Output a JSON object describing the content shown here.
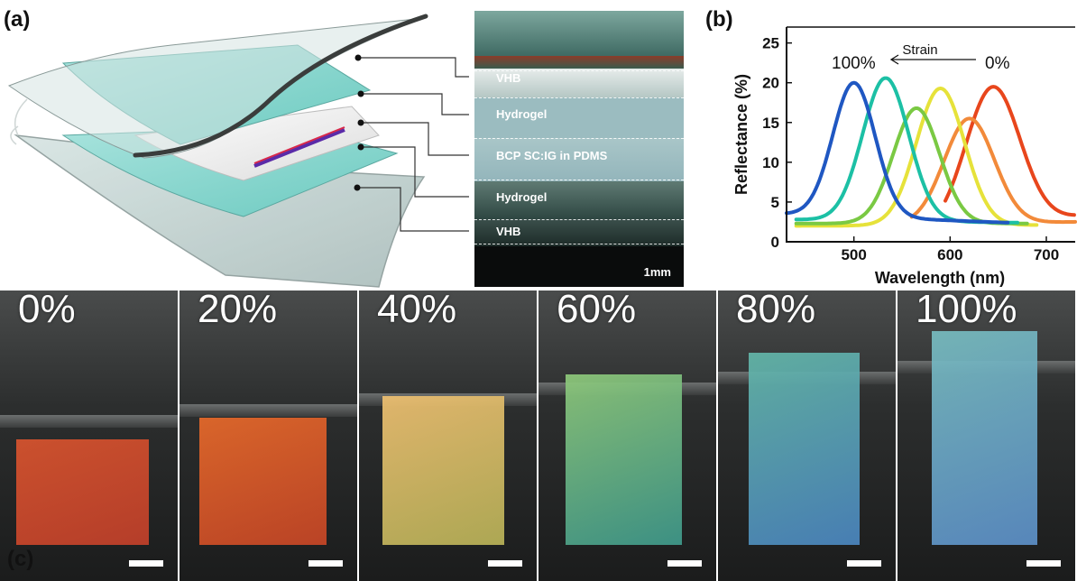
{
  "panel_labels": {
    "a": "(a)",
    "b": "(b)",
    "c": "(c)"
  },
  "panel_a": {
    "layers": [
      "VHB",
      "Hydrogel",
      "BCP SC:IG in PDMS",
      "Hydrogel",
      "VHB"
    ],
    "scale_bar": "1mm"
  },
  "chart_data": {
    "type": "line",
    "xlabel": "Wavelength (nm)",
    "ylabel": "Reflectance (%)",
    "xlim": [
      430,
      730
    ],
    "ylim": [
      0,
      27
    ],
    "xticks": [
      500,
      600,
      700
    ],
    "yticks": [
      0,
      5,
      10,
      15,
      20,
      25
    ],
    "annotation": {
      "left": "100%",
      "arrow": "Strain",
      "right": "0%"
    },
    "series": [
      {
        "color": "#e8461c",
        "peak_x": 645,
        "peak_y": 19.5,
        "sigma": 28,
        "base_left": 1.5,
        "base_right": 3.2,
        "x_range": [
          595,
          730
        ]
      },
      {
        "color": "#f28a3a",
        "peak_x": 620,
        "peak_y": 15.5,
        "sigma": 26,
        "base_left": 2.2,
        "base_right": 2.5,
        "x_range": [
          560,
          730
        ]
      },
      {
        "color": "#e6e23a",
        "peak_x": 590,
        "peak_y": 19.3,
        "sigma": 25,
        "base_left": 2.0,
        "base_right": 2.1,
        "x_range": [
          440,
          690
        ]
      },
      {
        "color": "#7ac943",
        "peak_x": 565,
        "peak_y": 16.8,
        "sigma": 24,
        "base_left": 2.3,
        "base_right": 2.3,
        "x_range": [
          440,
          680
        ]
      },
      {
        "color": "#1cc0a5",
        "peak_x": 533,
        "peak_y": 20.6,
        "sigma": 24,
        "base_left": 2.8,
        "base_right": 2.4,
        "x_range": [
          440,
          670
        ]
      },
      {
        "color": "#1f57c2",
        "peak_x": 500,
        "peak_y": 20.0,
        "sigma": 22,
        "base_left": 3.5,
        "base_right": 2.4,
        "x_range": [
          430,
          660
        ]
      }
    ]
  },
  "panel_c": {
    "strain_levels": [
      "0%",
      "20%",
      "40%",
      "60%",
      "80%",
      "100%"
    ],
    "sample_colors": [
      {
        "top": "#d9542e",
        "bottom": "#c2402a"
      },
      {
        "top": "#e86a2a",
        "bottom": "#c74626"
      },
      {
        "top": "#efc071",
        "bottom": "#b9b358"
      },
      {
        "top": "#8fc97a",
        "bottom": "#3f9a8c"
      },
      {
        "top": "#63b7a8",
        "bottom": "#4b86c0"
      },
      {
        "top": "#78bdc0",
        "bottom": "#5c8fc8"
      }
    ]
  }
}
